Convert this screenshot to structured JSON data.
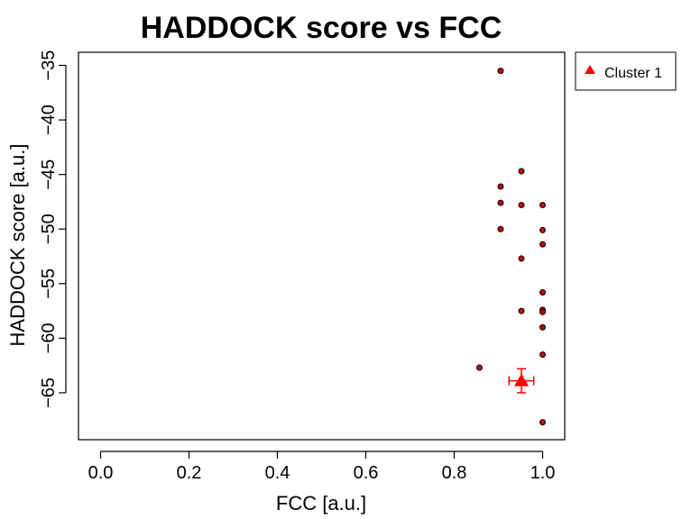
{
  "chart_data": {
    "type": "scatter",
    "title": "HADDOCK score vs FCC",
    "xlabel": "FCC [a.u.]",
    "ylabel": "HADDOCK score [a.u.]",
    "xlim": [
      -0.05,
      1.05
    ],
    "ylim": [
      -69.3,
      -33.8
    ],
    "x_ticks": [
      0.0,
      0.2,
      0.4,
      0.6,
      0.8,
      1.0
    ],
    "x_tick_labels": [
      "0.0",
      "0.2",
      "0.4",
      "0.6",
      "0.8",
      "1.0"
    ],
    "y_ticks": [
      -35,
      -40,
      -45,
      -50,
      -55,
      -60,
      -65
    ],
    "y_tick_labels": [
      "−35",
      "−40",
      "−45",
      "−50",
      "−55",
      "−60",
      "−65"
    ],
    "grid": false,
    "legend_position": "outside-top-right",
    "legend": [
      {
        "label": "Cluster 1",
        "marker": "triangle",
        "color": "#ff0000"
      }
    ],
    "points": [
      {
        "x": 0.905,
        "y": -35.5
      },
      {
        "x": 0.952,
        "y": -44.7
      },
      {
        "x": 0.905,
        "y": -46.1
      },
      {
        "x": 0.905,
        "y": -47.6
      },
      {
        "x": 0.952,
        "y": -47.8
      },
      {
        "x": 1.0,
        "y": -47.8
      },
      {
        "x": 0.905,
        "y": -50.0
      },
      {
        "x": 1.0,
        "y": -50.1
      },
      {
        "x": 1.0,
        "y": -51.4
      },
      {
        "x": 0.952,
        "y": -52.7
      },
      {
        "x": 1.0,
        "y": -55.8
      },
      {
        "x": 0.952,
        "y": -57.5
      },
      {
        "x": 1.0,
        "y": -57.4
      },
      {
        "x": 1.0,
        "y": -57.6
      },
      {
        "x": 1.0,
        "y": -59.0
      },
      {
        "x": 1.0,
        "y": -61.5
      },
      {
        "x": 0.857,
        "y": -62.7
      },
      {
        "x": 1.0,
        "y": -67.7
      }
    ],
    "point_style": {
      "fill": "#cc0000",
      "stroke": "#000000"
    },
    "cluster_mean": {
      "name": "Cluster 1",
      "x": 0.952,
      "y": -63.9,
      "x_err": 0.028,
      "y_err": 1.1,
      "color": "#ff0000"
    }
  }
}
